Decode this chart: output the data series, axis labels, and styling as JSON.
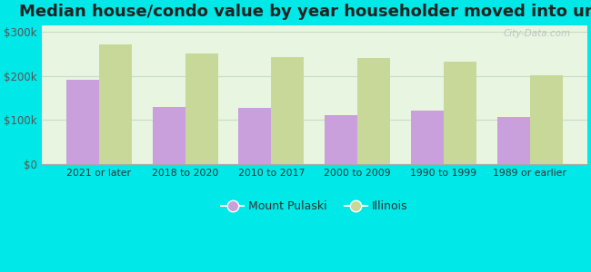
{
  "title": "Median house/condo value by year householder moved into unit",
  "categories": [
    "2021 or later",
    "2018 to 2020",
    "2010 to 2017",
    "2000 to 2009",
    "1990 to 1999",
    "1989 or earlier"
  ],
  "mount_pulaski": [
    192000,
    130000,
    128000,
    112000,
    122000,
    108000
  ],
  "illinois": [
    272000,
    252000,
    242000,
    240000,
    232000,
    202000
  ],
  "mount_pulaski_color": "#c9a0dc",
  "illinois_color": "#c8d898",
  "background_outer": "#00e8e8",
  "background_inner_start": "#e8f5e0",
  "background_inner_end": "#f8fef8",
  "grid_color": "#c8dcc8",
  "yticks": [
    0,
    100000,
    200000,
    300000
  ],
  "ytick_labels": [
    "$0",
    "$100k",
    "$200k",
    "$300k"
  ],
  "ylim": [
    0,
    315000
  ],
  "bar_width": 0.38,
  "legend_mount_pulaski": "Mount Pulaski",
  "legend_illinois": "Illinois",
  "title_fontsize": 13,
  "watermark": "City-Data.com"
}
